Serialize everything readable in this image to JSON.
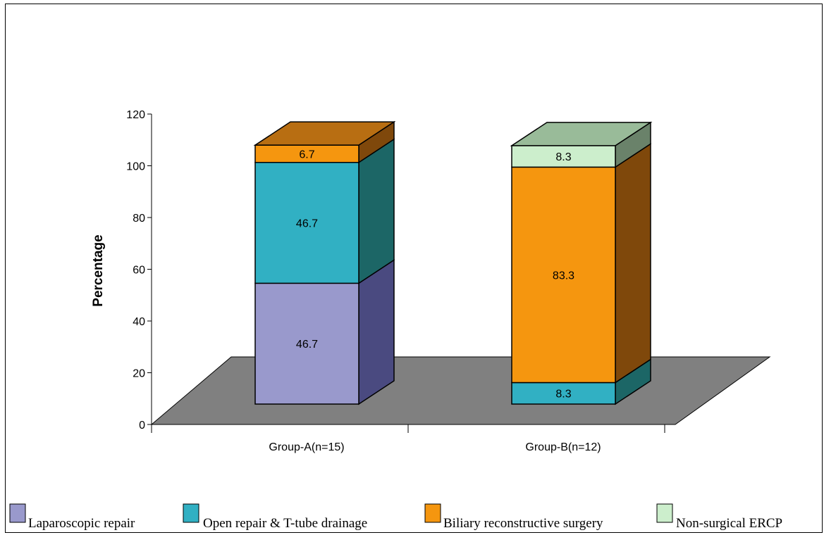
{
  "chart_data": {
    "type": "bar",
    "stacked": true,
    "three_d": true,
    "ylabel": "Percentage",
    "ylim": [
      0,
      120
    ],
    "yticks": [
      0,
      20,
      40,
      60,
      80,
      100,
      120
    ],
    "categories": [
      "Group-A(n=15)",
      "Group-B(n=12)"
    ],
    "series": [
      {
        "name": "Laparoscopic repair",
        "values": [
          46.7,
          0
        ],
        "labels": [
          "46.7",
          ""
        ],
        "color": "#9999CC",
        "side": "#4A4A80",
        "top": "#7A7AB0"
      },
      {
        "name": "Open repair & T-tube drainage",
        "values": [
          46.7,
          8.3
        ],
        "labels": [
          "46.7",
          "8.3"
        ],
        "color": "#31B0C3",
        "side": "#1C6666",
        "top": "#1E7A7A"
      },
      {
        "name": "Biliary reconstructive surgery",
        "values": [
          6.7,
          83.3
        ],
        "labels": [
          "6.7",
          "83.3"
        ],
        "color": "#F5960F",
        "side": "#7F480B",
        "top": "#B86E12"
      },
      {
        "name": "Non-surgical ERCP",
        "values": [
          0,
          8.3
        ],
        "labels": [
          "",
          "8.3"
        ],
        "color": "#CCEECC",
        "side": "#6A826A",
        "top": "#99BB99"
      }
    ],
    "floor_color": "#808080",
    "grid": false,
    "legend_position": "bottom"
  }
}
